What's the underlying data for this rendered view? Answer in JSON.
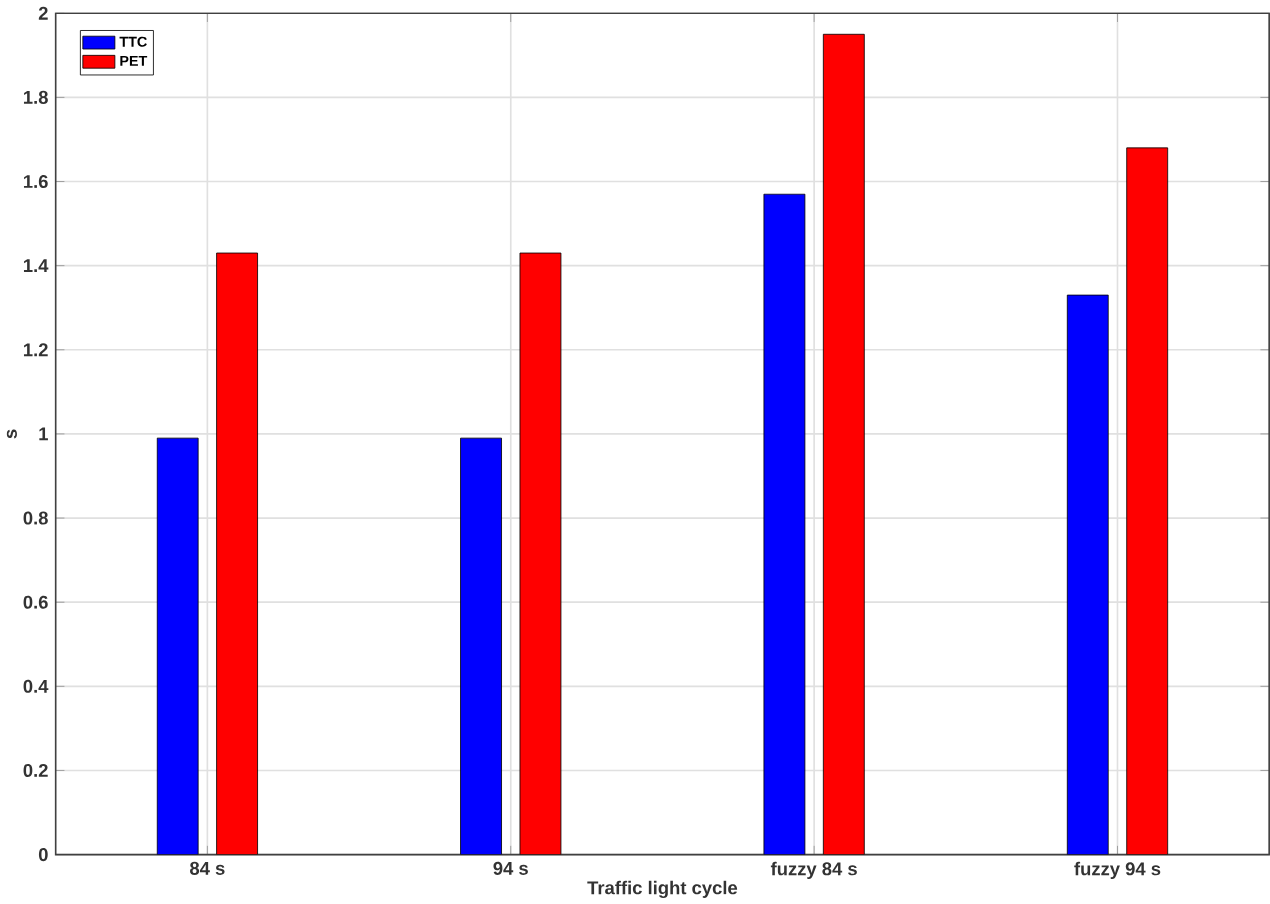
{
  "chart_data": {
    "type": "bar",
    "xlabel": "Traffic light cycle",
    "ylabel": "s",
    "categories": [
      "84 s",
      "94 s",
      "fuzzy 84 s",
      "fuzzy 94 s"
    ],
    "series": [
      {
        "name": "TTC",
        "color": "#0000ff",
        "values": [
          0.99,
          0.99,
          1.57,
          1.33
        ]
      },
      {
        "name": "PET",
        "color": "#ff0000",
        "values": [
          1.43,
          1.43,
          1.95,
          1.68
        ]
      }
    ],
    "ylim": [
      0,
      2
    ],
    "yticks": [
      0,
      0.2,
      0.4,
      0.6,
      0.8,
      1,
      1.2,
      1.4,
      1.6,
      1.8,
      2
    ],
    "grid": true,
    "legend": "top left"
  }
}
